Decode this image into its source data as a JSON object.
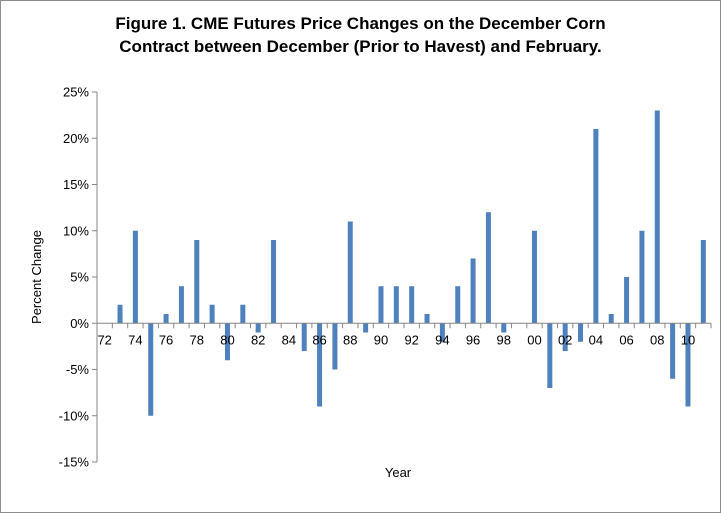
{
  "chart_data": {
    "type": "bar",
    "title_line1": "Figure 1.  CME Futures Price Changes on the December  Corn",
    "title_line2": "Contract between December (Prior to Havest) and February.",
    "xlabel": "Year",
    "ylabel": "Percent Change",
    "ylim": [
      -15,
      25
    ],
    "y_ticks": [
      -15,
      -10,
      -5,
      0,
      5,
      10,
      15,
      20,
      25
    ],
    "y_tick_labels": [
      "-15%",
      "-10%",
      "-5%",
      "0%",
      "5%",
      "10%",
      "15%",
      "20%",
      "25%"
    ],
    "x_tick_labels": [
      "72",
      "74",
      "76",
      "78",
      "80",
      "82",
      "84",
      "86",
      "88",
      "90",
      "92",
      "94",
      "96",
      "98",
      "00",
      "02",
      "04",
      "06",
      "08",
      "10"
    ],
    "categories": [
      "72",
      "73",
      "74",
      "75",
      "76",
      "77",
      "78",
      "79",
      "80",
      "81",
      "82",
      "83",
      "84",
      "85",
      "86",
      "87",
      "88",
      "89",
      "90",
      "91",
      "92",
      "93",
      "94",
      "95",
      "96",
      "97",
      "98",
      "99",
      "00",
      "01",
      "02",
      "03",
      "04",
      "05",
      "06",
      "07",
      "08",
      "09",
      "10",
      "11"
    ],
    "values": [
      0,
      2,
      10,
      -10,
      1,
      4,
      9,
      2,
      -4,
      2,
      -1,
      9,
      0,
      -3,
      -9,
      -5,
      11,
      -1,
      4,
      4,
      4,
      1,
      -2,
      4,
      7,
      12,
      -1,
      0,
      10,
      -7,
      -3,
      -2,
      21,
      1,
      5,
      10,
      23,
      -6,
      -9,
      9
    ],
    "bar_color": "#4f81bd",
    "grid": false,
    "legend": "none"
  }
}
